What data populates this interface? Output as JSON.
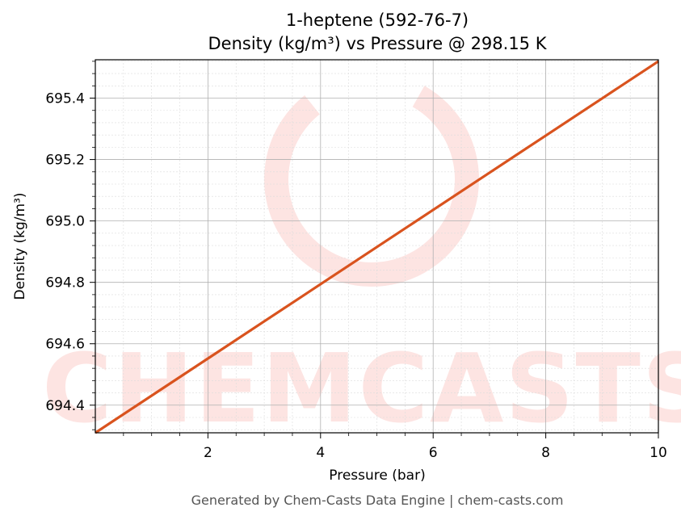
{
  "chart_data": {
    "type": "line",
    "title_line1": "1-heptene (592-76-7)",
    "title_line2": "Density (kg/m³) vs Pressure @ 298.15 K",
    "xlabel": "Pressure (bar)",
    "ylabel": "Density (kg/m³)",
    "xlim": [
      0.0,
      10.0
    ],
    "ylim": [
      694.31,
      695.525
    ],
    "x_ticks": [
      2,
      4,
      6,
      8,
      10
    ],
    "x_tick_labels": [
      "2",
      "4",
      "6",
      "8",
      "10"
    ],
    "y_ticks": [
      694.4,
      694.6,
      694.8,
      695.0,
      695.2,
      695.4
    ],
    "y_tick_labels": [
      "694.4",
      "694.6",
      "694.8",
      "695.0",
      "695.2",
      "695.4"
    ],
    "grid": true,
    "series": [
      {
        "color": "#d9531e",
        "x": [
          0,
          1,
          2,
          3,
          4,
          5,
          6,
          7,
          8,
          9,
          10
        ],
        "y": [
          694.31,
          694.431,
          694.552,
          694.673,
          694.794,
          694.915,
          695.036,
          695.157,
          695.278,
          695.399,
          695.52
        ]
      }
    ]
  },
  "watermark": {
    "text": "CHEMCASTS",
    "color": "#fde4e2"
  },
  "footer": {
    "text": "Generated by Chem-Casts Data Engine | chem-casts.com"
  }
}
